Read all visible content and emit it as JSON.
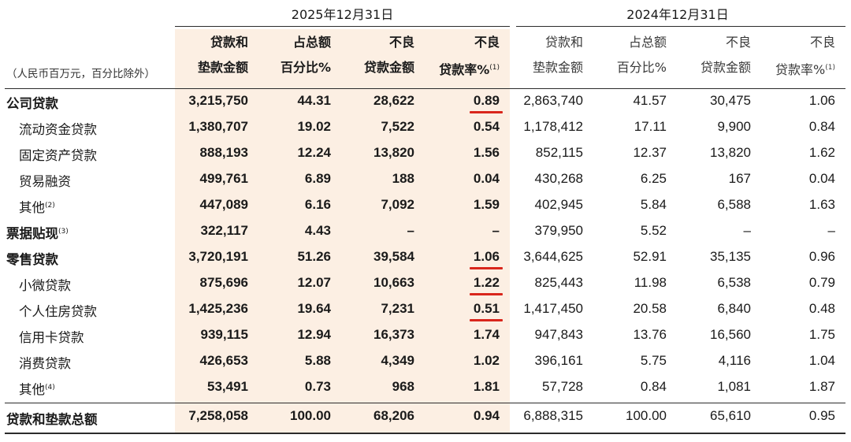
{
  "periods": {
    "current": "2025年12月31日",
    "previous": "2024年12月31日"
  },
  "unit_note": "（人民币百万元，百分比除外）",
  "headers": {
    "amount": [
      "贷款和",
      "垫款金额"
    ],
    "share": [
      "占总额",
      "百分比%"
    ],
    "npl_amount": [
      "不良",
      "贷款金额"
    ],
    "npl_ratio": [
      "不良",
      "贷款率%"
    ],
    "npl_ratio_note": "(1)"
  },
  "rows": [
    {
      "label": "公司贷款",
      "note": "",
      "bold": true,
      "indent": false,
      "c": [
        "3,215,750",
        "44.31",
        "28,622",
        "0.89"
      ],
      "p": [
        "2,863,740",
        "41.57",
        "30,475",
        "1.06"
      ]
    },
    {
      "label": "流动资金贷款",
      "note": "",
      "bold": false,
      "indent": true,
      "c": [
        "1,380,707",
        "19.02",
        "7,522",
        "0.54"
      ],
      "p": [
        "1,178,412",
        "17.11",
        "9,900",
        "0.84"
      ]
    },
    {
      "label": "固定资产贷款",
      "note": "",
      "bold": false,
      "indent": true,
      "c": [
        "888,193",
        "12.24",
        "13,820",
        "1.56"
      ],
      "p": [
        "852,115",
        "12.37",
        "13,820",
        "1.62"
      ]
    },
    {
      "label": "贸易融资",
      "note": "",
      "bold": false,
      "indent": true,
      "c": [
        "499,761",
        "6.89",
        "188",
        "0.04"
      ],
      "p": [
        "430,268",
        "6.25",
        "167",
        "0.04"
      ]
    },
    {
      "label": "其他",
      "note": "(2)",
      "bold": false,
      "indent": true,
      "c": [
        "447,089",
        "6.16",
        "7,092",
        "1.59"
      ],
      "p": [
        "402,945",
        "5.84",
        "6,588",
        "1.63"
      ]
    },
    {
      "label": "票据贴现",
      "note": "(3)",
      "bold": true,
      "indent": false,
      "c": [
        "322,117",
        "4.43",
        "–",
        "–"
      ],
      "p": [
        "379,950",
        "5.52",
        "–",
        "–"
      ]
    },
    {
      "label": "零售贷款",
      "note": "",
      "bold": true,
      "indent": false,
      "c": [
        "3,720,191",
        "51.26",
        "39,584",
        "1.06"
      ],
      "p": [
        "3,644,625",
        "52.91",
        "35,135",
        "0.96"
      ]
    },
    {
      "label": "小微贷款",
      "note": "",
      "bold": false,
      "indent": true,
      "c": [
        "875,696",
        "12.07",
        "10,663",
        "1.22"
      ],
      "p": [
        "825,443",
        "11.98",
        "6,538",
        "0.79"
      ]
    },
    {
      "label": "个人住房贷款",
      "note": "",
      "bold": false,
      "indent": true,
      "c": [
        "1,425,236",
        "19.64",
        "7,231",
        "0.51"
      ],
      "p": [
        "1,417,450",
        "20.58",
        "6,840",
        "0.48"
      ]
    },
    {
      "label": "信用卡贷款",
      "note": "",
      "bold": false,
      "indent": true,
      "c": [
        "939,115",
        "12.94",
        "16,373",
        "1.74"
      ],
      "p": [
        "947,843",
        "13.76",
        "16,560",
        "1.75"
      ]
    },
    {
      "label": "消费贷款",
      "note": "",
      "bold": false,
      "indent": true,
      "c": [
        "426,653",
        "5.88",
        "4,349",
        "1.02"
      ],
      "p": [
        "396,161",
        "5.75",
        "4,116",
        "1.04"
      ]
    },
    {
      "label": "其他",
      "note": "(4)",
      "bold": false,
      "indent": true,
      "c": [
        "53,491",
        "0.73",
        "968",
        "1.81"
      ],
      "p": [
        "57,728",
        "0.84",
        "1,081",
        "1.87"
      ]
    }
  ],
  "total": {
    "label": "贷款和垫款总额",
    "c": [
      "7,258,058",
      "100.00",
      "68,206",
      "0.94"
    ],
    "p": [
      "6,888,315",
      "100.00",
      "65,610",
      "0.95"
    ]
  },
  "highlight_color": "#d9261c",
  "underlined_rows": [
    "公司贷款",
    "零售贷款",
    "小微贷款",
    "个人住房贷款"
  ]
}
